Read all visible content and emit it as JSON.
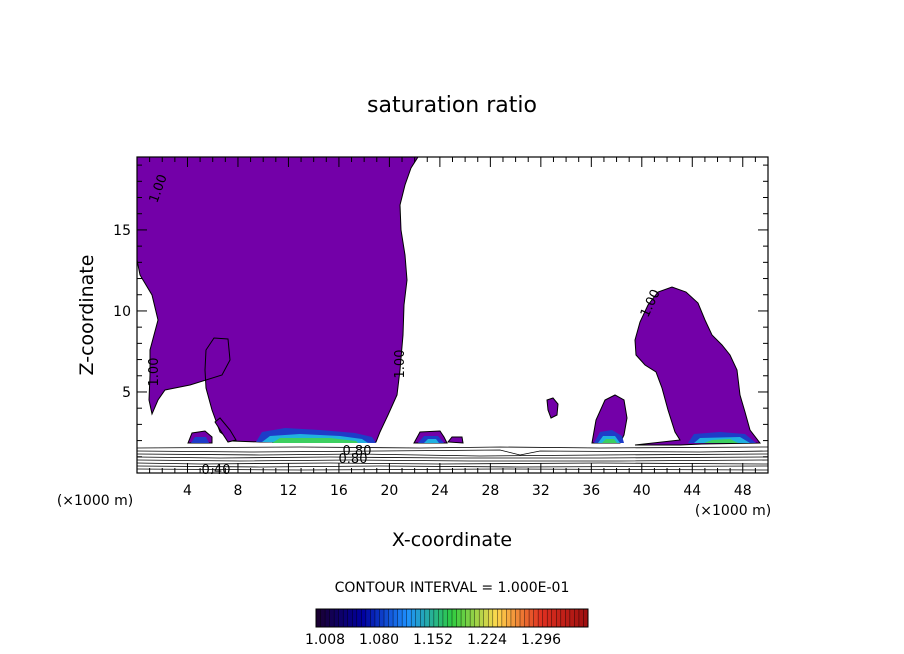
{
  "chart_data": {
    "type": "heatmap",
    "title": "saturation ratio",
    "xlabel": "X-coordinate",
    "ylabel": "Z-coordinate",
    "x_unit": "(×1000 m)",
    "z_unit": "(×1000 m)",
    "xlim": [
      0,
      50
    ],
    "ylim": [
      0,
      19.5
    ],
    "x_ticks": [
      4,
      8,
      12,
      16,
      20,
      24,
      28,
      32,
      36,
      40,
      44,
      48
    ],
    "y_ticks": [
      5,
      10,
      15
    ],
    "contour_interval_text": "CONTOUR INTERVAL = 1.000E-01",
    "contour_labels": [
      "1.00",
      "1.00",
      "1.00",
      "1.00",
      "0.40",
      "0.80",
      "0.80"
    ],
    "colorbar": {
      "labels": [
        "1.008",
        "1.080",
        "1.152",
        "1.224",
        "1.296"
      ],
      "values": [
        1.008,
        1.08,
        1.152,
        1.224,
        1.296
      ],
      "colors": [
        "#1a0033",
        "#0000a0",
        "#1e90ff",
        "#2ecc40",
        "#ffd84d",
        "#e03020",
        "#a01010"
      ]
    },
    "fill_color": "#7300a8"
  }
}
